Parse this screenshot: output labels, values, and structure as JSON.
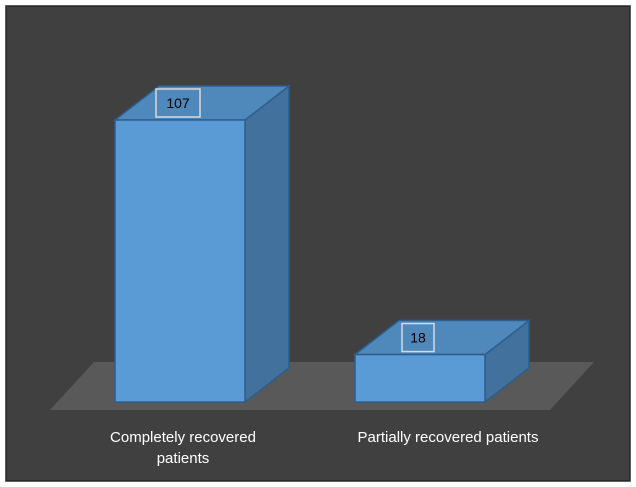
{
  "colors": {
    "background": "#404040",
    "border": "#262626",
    "floor": "#595959",
    "bar_front": "#5b9bd5",
    "bar_side": "#41719c",
    "bar_top": "#4f88bb",
    "bar_edge": "#2e5e8c",
    "text": "#ffffff",
    "data_label_border": "#d9d9d9",
    "data_label_text": "#000000"
  },
  "chart_data": {
    "type": "bar",
    "categories": [
      "Completely recovered patients",
      "Partially recovered patients"
    ],
    "category_label_lines": [
      [
        "Completely recovered",
        "patients"
      ],
      [
        "Partially recovered patients"
      ]
    ],
    "values": [
      107,
      18
    ],
    "data_labels": [
      "107",
      "18"
    ],
    "title": "",
    "xlabel": "",
    "ylabel": "",
    "ylim": [
      0,
      107
    ],
    "grid": false,
    "legend": "none",
    "style": "3d-column"
  }
}
